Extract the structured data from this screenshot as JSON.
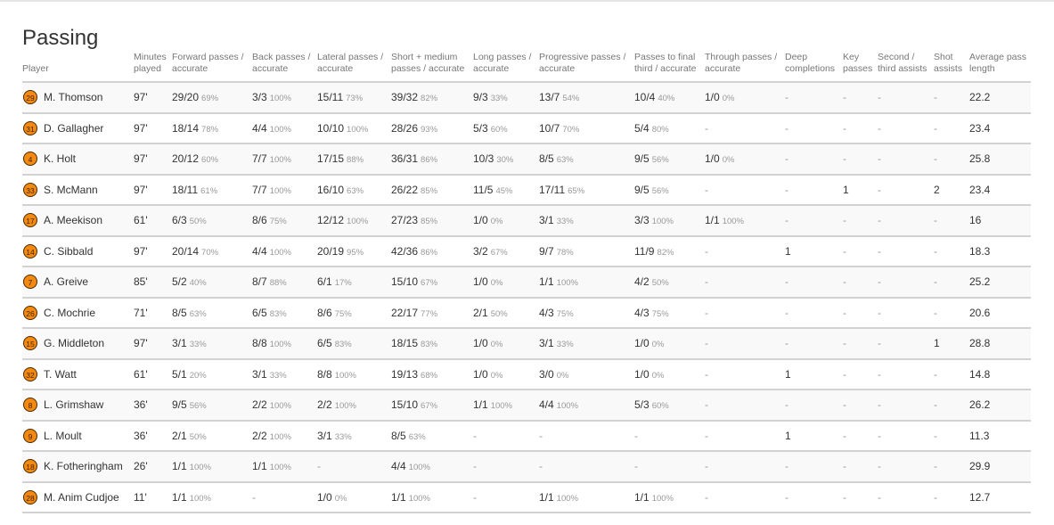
{
  "title": "Passing",
  "headers": [
    "Player",
    "Minutes played",
    "Forward passes / accurate",
    "Back passes / accurate",
    "Lateral passes / accurate",
    "Short + medium passes / accurate",
    "Long passes / accurate",
    "Progressive passes / accurate",
    "Passes to final third / accurate",
    "Through passes / accurate",
    "Deep completions",
    "Key passes",
    "Second / third assists",
    "Shot assists",
    "Average pass length"
  ],
  "accent": "#f28a12",
  "rows": [
    {
      "num": "29",
      "name": "M. Thomson",
      "min": "97'",
      "cells": [
        [
          "29/20",
          "69%"
        ],
        [
          "3/3",
          "100%"
        ],
        [
          "15/11",
          "73%"
        ],
        [
          "39/32",
          "82%"
        ],
        [
          "9/3",
          "33%"
        ],
        [
          "13/7",
          "54%"
        ],
        [
          "10/4",
          "40%"
        ],
        [
          "1/0",
          "0%"
        ],
        [
          "-"
        ],
        [
          "-"
        ],
        [
          "-"
        ],
        [
          "-"
        ],
        [
          "22.2"
        ]
      ]
    },
    {
      "num": "31",
      "name": "D. Gallagher",
      "min": "97'",
      "cells": [
        [
          "18/14",
          "78%"
        ],
        [
          "4/4",
          "100%"
        ],
        [
          "10/10",
          "100%"
        ],
        [
          "28/26",
          "93%"
        ],
        [
          "5/3",
          "60%"
        ],
        [
          "10/7",
          "70%"
        ],
        [
          "5/4",
          "80%"
        ],
        [
          "-"
        ],
        [
          "-"
        ],
        [
          "-"
        ],
        [
          "-"
        ],
        [
          "-"
        ],
        [
          "23.4"
        ]
      ]
    },
    {
      "num": "4",
      "name": "K. Holt",
      "min": "97'",
      "cells": [
        [
          "20/12",
          "60%"
        ],
        [
          "7/7",
          "100%"
        ],
        [
          "17/15",
          "88%"
        ],
        [
          "36/31",
          "86%"
        ],
        [
          "10/3",
          "30%"
        ],
        [
          "8/5",
          "63%"
        ],
        [
          "9/5",
          "56%"
        ],
        [
          "1/0",
          "0%"
        ],
        [
          "-"
        ],
        [
          "-"
        ],
        [
          "-"
        ],
        [
          "-"
        ],
        [
          "25.8"
        ]
      ]
    },
    {
      "num": "33",
      "name": "S. McMann",
      "min": "97'",
      "cells": [
        [
          "18/11",
          "61%"
        ],
        [
          "7/7",
          "100%"
        ],
        [
          "16/10",
          "63%"
        ],
        [
          "26/22",
          "85%"
        ],
        [
          "11/5",
          "45%"
        ],
        [
          "17/11",
          "65%"
        ],
        [
          "9/5",
          "56%"
        ],
        [
          "-"
        ],
        [
          "-"
        ],
        [
          "1"
        ],
        [
          "-"
        ],
        [
          "2"
        ],
        [
          "23.4"
        ]
      ]
    },
    {
      "num": "17",
      "name": "A. Meekison",
      "min": "61'",
      "cells": [
        [
          "6/3",
          "50%"
        ],
        [
          "8/6",
          "75%"
        ],
        [
          "12/12",
          "100%"
        ],
        [
          "27/23",
          "85%"
        ],
        [
          "1/0",
          "0%"
        ],
        [
          "3/1",
          "33%"
        ],
        [
          "3/3",
          "100%"
        ],
        [
          "1/1",
          "100%"
        ],
        [
          "-"
        ],
        [
          "-"
        ],
        [
          "-"
        ],
        [
          "-"
        ],
        [
          "16"
        ]
      ]
    },
    {
      "num": "14",
      "name": "C. Sibbald",
      "min": "97'",
      "cells": [
        [
          "20/14",
          "70%"
        ],
        [
          "4/4",
          "100%"
        ],
        [
          "20/19",
          "95%"
        ],
        [
          "42/36",
          "86%"
        ],
        [
          "3/2",
          "67%"
        ],
        [
          "9/7",
          "78%"
        ],
        [
          "11/9",
          "82%"
        ],
        [
          "-"
        ],
        [
          "1"
        ],
        [
          "-"
        ],
        [
          "-"
        ],
        [
          "-"
        ],
        [
          "18.3"
        ]
      ]
    },
    {
      "num": "7",
      "name": "A. Greive",
      "min": "85'",
      "cells": [
        [
          "5/2",
          "40%"
        ],
        [
          "8/7",
          "88%"
        ],
        [
          "6/1",
          "17%"
        ],
        [
          "15/10",
          "67%"
        ],
        [
          "1/0",
          "0%"
        ],
        [
          "1/1",
          "100%"
        ],
        [
          "4/2",
          "50%"
        ],
        [
          "-"
        ],
        [
          "-"
        ],
        [
          "-"
        ],
        [
          "-"
        ],
        [
          "-"
        ],
        [
          "25.2"
        ]
      ]
    },
    {
      "num": "26",
      "name": "C. Mochrie",
      "min": "71'",
      "cells": [
        [
          "8/5",
          "63%"
        ],
        [
          "6/5",
          "83%"
        ],
        [
          "8/6",
          "75%"
        ],
        [
          "22/17",
          "77%"
        ],
        [
          "2/1",
          "50%"
        ],
        [
          "4/3",
          "75%"
        ],
        [
          "4/3",
          "75%"
        ],
        [
          "-"
        ],
        [
          "-"
        ],
        [
          "-"
        ],
        [
          "-"
        ],
        [
          "-"
        ],
        [
          "20.6"
        ]
      ]
    },
    {
      "num": "15",
      "name": "G. Middleton",
      "min": "97'",
      "cells": [
        [
          "3/1",
          "33%"
        ],
        [
          "8/8",
          "100%"
        ],
        [
          "6/5",
          "83%"
        ],
        [
          "18/15",
          "83%"
        ],
        [
          "1/0",
          "0%"
        ],
        [
          "3/1",
          "33%"
        ],
        [
          "1/0",
          "0%"
        ],
        [
          "-"
        ],
        [
          "-"
        ],
        [
          "-"
        ],
        [
          "-"
        ],
        [
          "1"
        ],
        [
          "28.8"
        ]
      ]
    },
    {
      "num": "32",
      "name": "T. Watt",
      "min": "61'",
      "cells": [
        [
          "5/1",
          "20%"
        ],
        [
          "3/1",
          "33%"
        ],
        [
          "8/8",
          "100%"
        ],
        [
          "19/13",
          "68%"
        ],
        [
          "1/0",
          "0%"
        ],
        [
          "3/0",
          "0%"
        ],
        [
          "1/0",
          "0%"
        ],
        [
          "-"
        ],
        [
          "1"
        ],
        [
          "-"
        ],
        [
          "-"
        ],
        [
          "-"
        ],
        [
          "14.8"
        ]
      ]
    },
    {
      "num": "8",
      "name": "L. Grimshaw",
      "min": "36'",
      "cells": [
        [
          "9/5",
          "56%"
        ],
        [
          "2/2",
          "100%"
        ],
        [
          "2/2",
          "100%"
        ],
        [
          "15/10",
          "67%"
        ],
        [
          "1/1",
          "100%"
        ],
        [
          "4/4",
          "100%"
        ],
        [
          "5/3",
          "60%"
        ],
        [
          "-"
        ],
        [
          "-"
        ],
        [
          "-"
        ],
        [
          "-"
        ],
        [
          "-"
        ],
        [
          "26.2"
        ]
      ]
    },
    {
      "num": "9",
      "name": "L. Moult",
      "min": "36'",
      "cells": [
        [
          "2/1",
          "50%"
        ],
        [
          "2/2",
          "100%"
        ],
        [
          "3/1",
          "33%"
        ],
        [
          "8/5",
          "63%"
        ],
        [
          "-"
        ],
        [
          "-"
        ],
        [
          "-"
        ],
        [
          "-"
        ],
        [
          "1"
        ],
        [
          "-"
        ],
        [
          "-"
        ],
        [
          "-"
        ],
        [
          "11.3"
        ]
      ]
    },
    {
      "num": "18",
      "name": "K. Fotheringham",
      "min": "26'",
      "cells": [
        [
          "1/1",
          "100%"
        ],
        [
          "1/1",
          "100%"
        ],
        [
          "-"
        ],
        [
          "4/4",
          "100%"
        ],
        [
          "-"
        ],
        [
          "-"
        ],
        [
          "-"
        ],
        [
          "-"
        ],
        [
          "-"
        ],
        [
          "-"
        ],
        [
          "-"
        ],
        [
          "-"
        ],
        [
          "29.9"
        ]
      ]
    },
    {
      "num": "28",
      "name": "M. Anim Cudjoe",
      "min": "11'",
      "cells": [
        [
          "1/1",
          "100%"
        ],
        [
          "-"
        ],
        [
          "1/0",
          "0%"
        ],
        [
          "1/1",
          "100%"
        ],
        [
          "-"
        ],
        [
          "1/1",
          "100%"
        ],
        [
          "1/1",
          "100%"
        ],
        [
          "-"
        ],
        [
          "-"
        ],
        [
          "-"
        ],
        [
          "-"
        ],
        [
          "-"
        ],
        [
          "12.7"
        ]
      ]
    }
  ]
}
